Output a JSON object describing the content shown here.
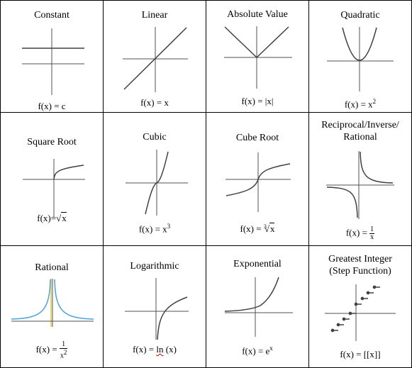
{
  "cells": [
    {
      "title": "Constant",
      "formula": "f(x) = c"
    },
    {
      "title": "Linear",
      "formula": "f(x) = x"
    },
    {
      "title": "Absolute Value",
      "formula": "f(x) = |x|"
    },
    {
      "title": "Quadratic",
      "formula_base": "f(x) = x",
      "formula_exp": "2"
    },
    {
      "title": "Square Root",
      "formula_base": "f(x)=",
      "formula_radical": "√",
      "formula_radicand": "x"
    },
    {
      "title": "Cubic",
      "formula_base": "f(x) = x",
      "formula_exp": "3"
    },
    {
      "title": "Cube Root",
      "formula_base": "f(x) = ",
      "formula_index": "3",
      "formula_radical": "√",
      "formula_radicand": "x"
    },
    {
      "title": "Reciprocal/Inverse/\nRational",
      "formula_base": "f(x) = ",
      "formula_num": "1",
      "formula_den": "x"
    },
    {
      "title": "Rational",
      "formula_base": "f(x) = ",
      "formula_num": "1",
      "formula_den": "x",
      "formula_den_exp": "2"
    },
    {
      "title": "Logarithmic",
      "formula_base": "f(x) = ",
      "formula_ln": "ln",
      "formula_tail": " (x)"
    },
    {
      "title": "Exponential",
      "formula_base": "f(x) = e",
      "formula_exp": "x"
    },
    {
      "title": "Greatest Integer\n(Step Function)",
      "formula": "f(x) = [[x]]"
    }
  ],
  "colors": {
    "curve": "#404040",
    "axis": "#505050",
    "rational_curve": "#4aa0e0",
    "rational_asymptote": "#e8d870"
  }
}
